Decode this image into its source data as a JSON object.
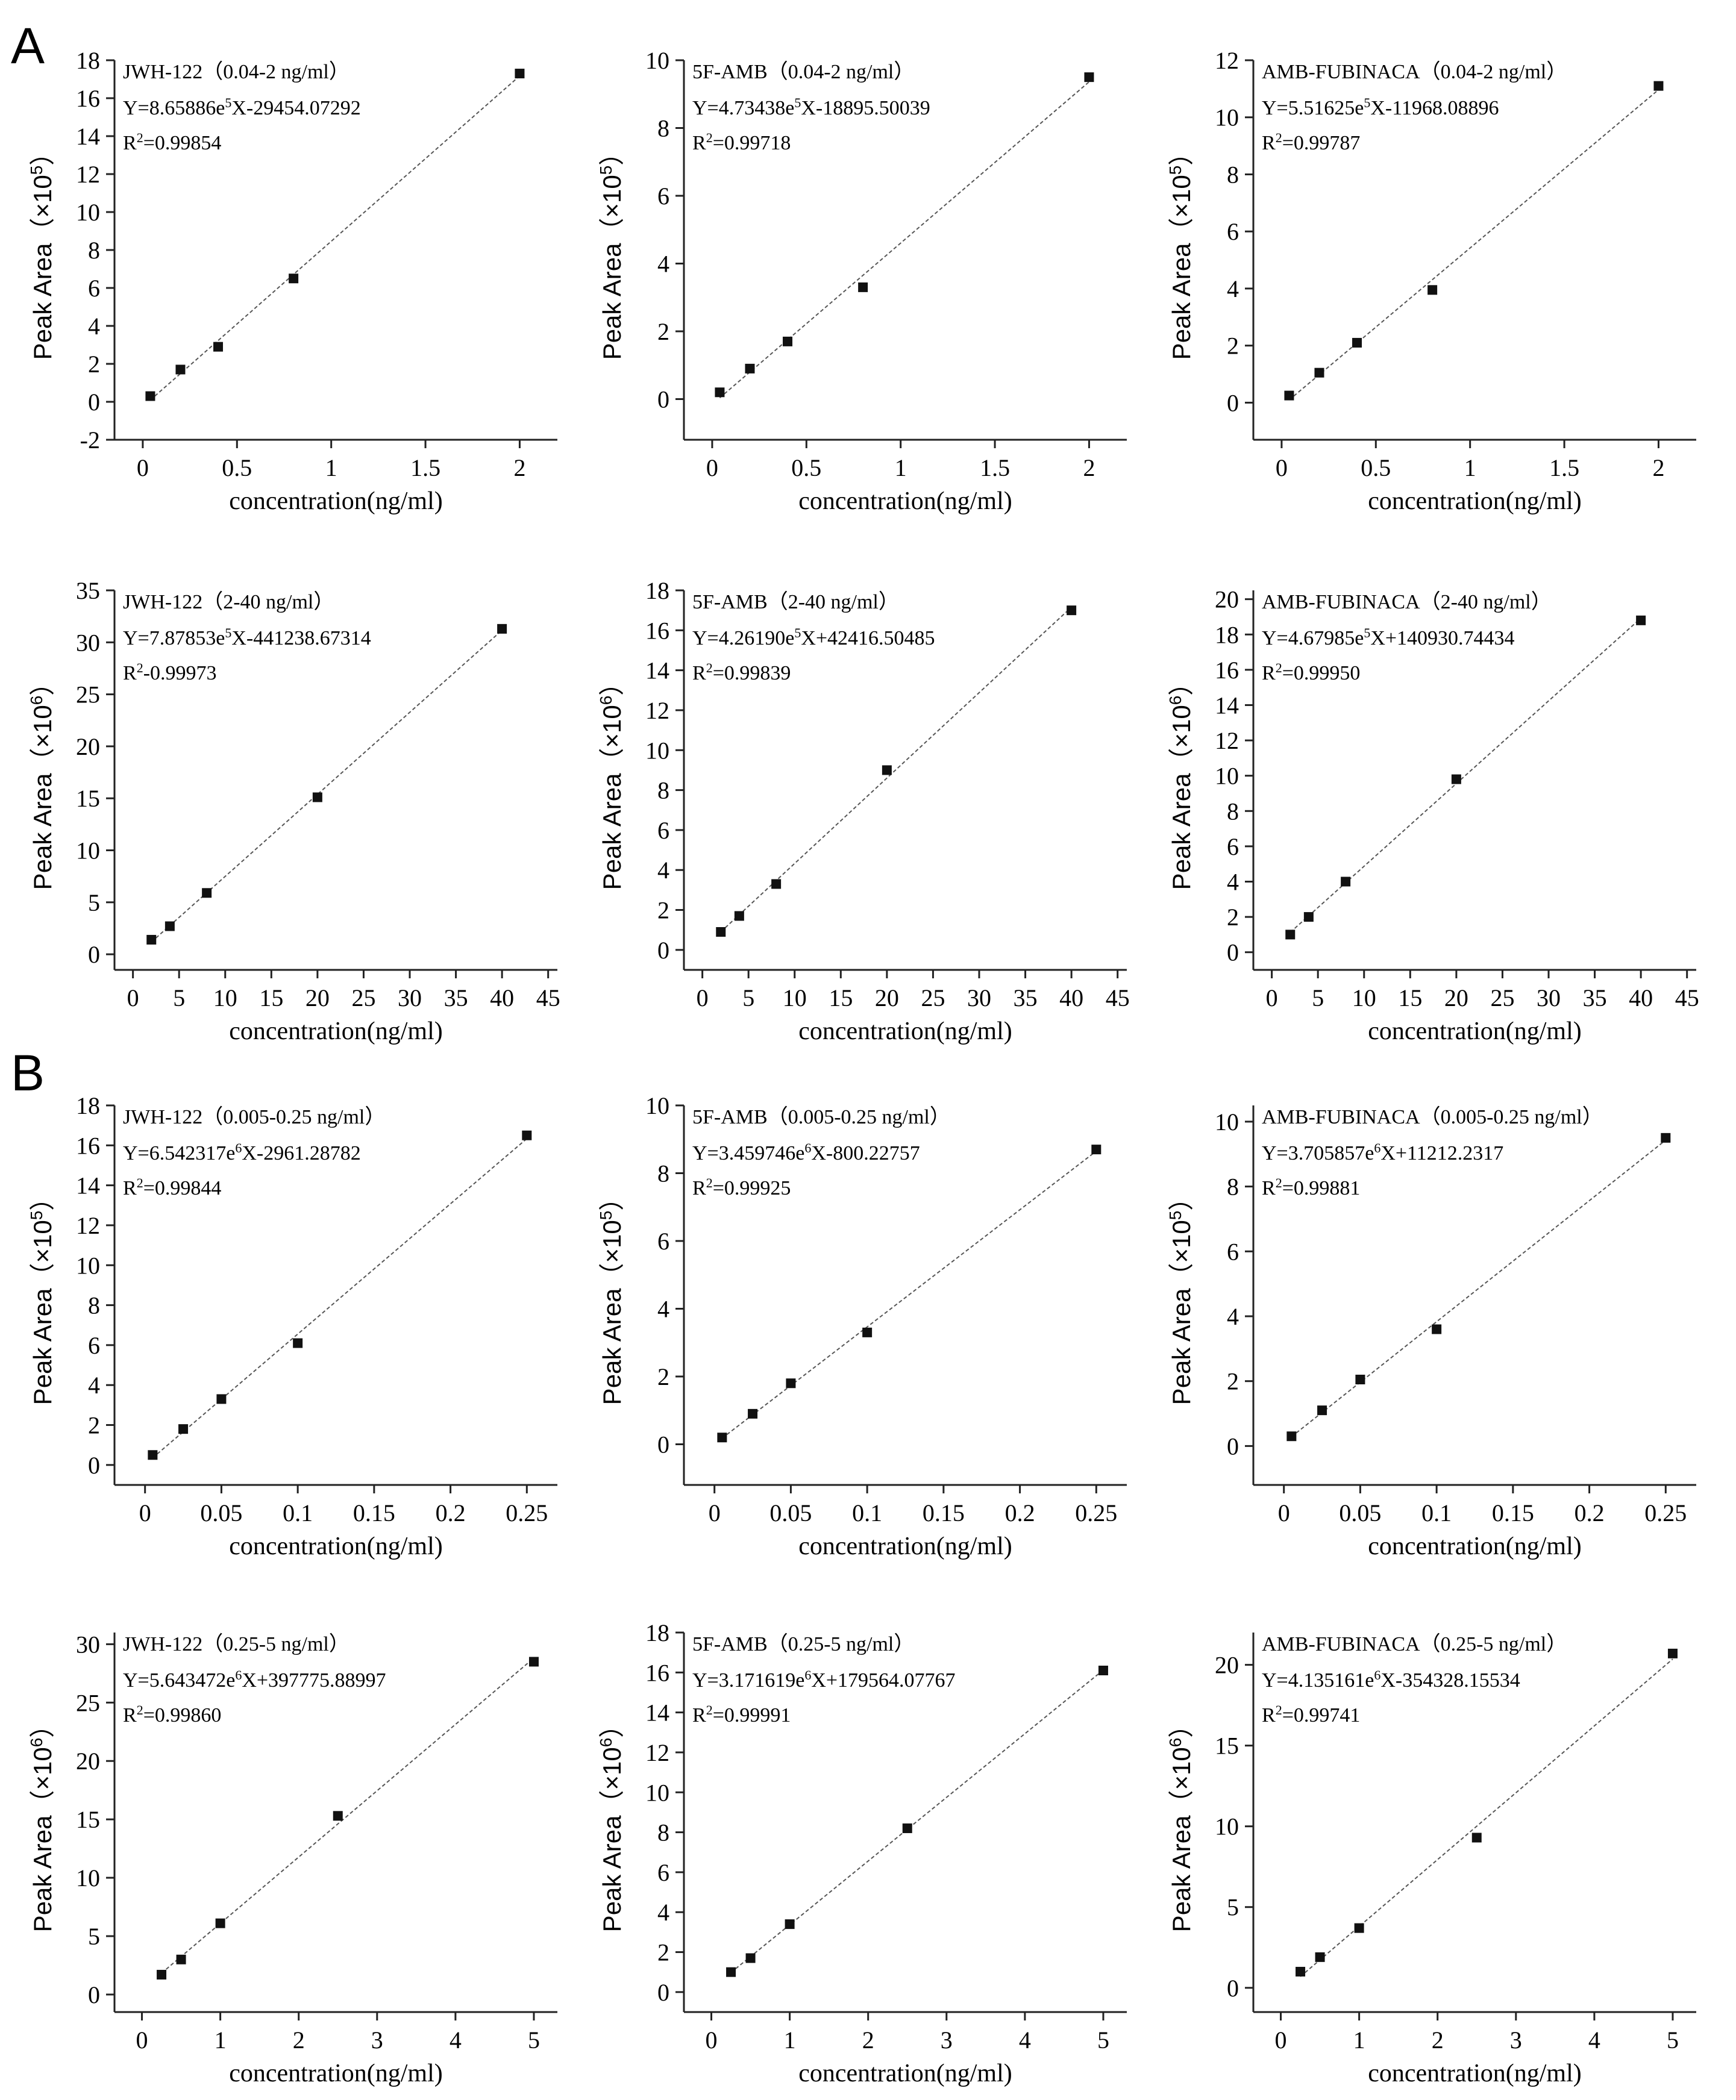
{
  "panel_labels": [
    "A",
    "B"
  ],
  "chart_data": [
    {
      "type": "scatter",
      "panel": "A",
      "title": "JWH-122（0.04-2 ng/ml）",
      "equation_prefix": "Y=8.65886e",
      "equation_exp": "5",
      "equation_suffix": "X-29454.07292",
      "r2_prefix": "R",
      "r2_exp": "2",
      "r2_suffix": "=0.99854",
      "xlabel": "concentration(ng/ml)",
      "ylabel": "Peak Area（×10",
      "ylabel_exp": "5",
      "ylabel_end": "）",
      "xlim": [
        -0.15,
        2.2
      ],
      "ylim": [
        -2,
        18
      ],
      "xticks": [
        0,
        0.5,
        1,
        1.5,
        2
      ],
      "xtick_labels": [
        "0",
        "0.5",
        "1",
        "1.5",
        "2"
      ],
      "yticks": [
        -2,
        0,
        2,
        4,
        6,
        8,
        10,
        12,
        14,
        16,
        18
      ],
      "ytick_labels": [
        "-2",
        "0",
        "2",
        "4",
        "6",
        "8",
        "10",
        "12",
        "14",
        "16",
        "18"
      ],
      "x": [
        0.04,
        0.2,
        0.4,
        0.8,
        2
      ],
      "y": [
        0.3,
        1.7,
        2.9,
        6.5,
        17.3
      ]
    },
    {
      "type": "scatter",
      "panel": "A",
      "title": "5F-AMB（0.04-2 ng/ml）",
      "equation_prefix": "Y=4.73438e",
      "equation_exp": "5",
      "equation_suffix": "X-18895.50039",
      "r2_prefix": "R",
      "r2_exp": "2",
      "r2_suffix": "=0.99718",
      "xlabel": "concentration(ng/ml)",
      "ylabel": "Peak Area（×10",
      "ylabel_exp": "5",
      "ylabel_end": "）",
      "xlim": [
        -0.15,
        2.2
      ],
      "ylim": [
        -1.2,
        10
      ],
      "xticks": [
        0,
        0.5,
        1,
        1.5,
        2
      ],
      "xtick_labels": [
        "0",
        "0.5",
        "1",
        "1.5",
        "2"
      ],
      "yticks": [
        0,
        2,
        4,
        6,
        8,
        10
      ],
      "ytick_labels": [
        "0",
        "2",
        "4",
        "6",
        "8",
        "10"
      ],
      "x": [
        0.04,
        0.2,
        0.4,
        0.8,
        2
      ],
      "y": [
        0.2,
        0.9,
        1.7,
        3.3,
        9.5
      ]
    },
    {
      "type": "scatter",
      "panel": "A",
      "title": "AMB-FUBINACA（0.04-2 ng/ml）",
      "equation_prefix": "Y=5.51625e",
      "equation_exp": "5",
      "equation_suffix": "X-11968.08896",
      "r2_prefix": "R",
      "r2_exp": "2",
      "r2_suffix": "=0.99787",
      "xlabel": "concentration(ng/ml)",
      "ylabel": "Peak Area（×10",
      "ylabel_exp": "5",
      "ylabel_end": "）",
      "xlim": [
        -0.15,
        2.2
      ],
      "ylim": [
        -1.3,
        12
      ],
      "xticks": [
        0,
        0.5,
        1,
        1.5,
        2
      ],
      "xtick_labels": [
        "0",
        "0.5",
        "1",
        "1.5",
        "2"
      ],
      "yticks": [
        0,
        2,
        4,
        6,
        8,
        10,
        12
      ],
      "ytick_labels": [
        "0",
        "2",
        "4",
        "6",
        "8",
        "10",
        "12"
      ],
      "x": [
        0.04,
        0.2,
        0.4,
        0.8,
        2
      ],
      "y": [
        0.25,
        1.05,
        2.1,
        3.95,
        11.1
      ]
    },
    {
      "type": "scatter",
      "panel": "A",
      "title": "JWH-122（2-40 ng/ml）",
      "equation_prefix": "Y=7.87853e",
      "equation_exp": "5",
      "equation_suffix": "X-441238.67314",
      "r2_prefix": "R",
      "r2_exp": "2",
      "r2_suffix": "-0.99973",
      "xlabel": "concentration(ng/ml)",
      "ylabel": "Peak Area（×10",
      "ylabel_exp": "6",
      "ylabel_end": "）",
      "xlim": [
        -2,
        46
      ],
      "ylim": [
        -1.5,
        35
      ],
      "xticks": [
        0,
        5,
        10,
        15,
        20,
        25,
        30,
        35,
        40,
        45
      ],
      "xtick_labels": [
        "0",
        "5",
        "10",
        "15",
        "20",
        "25",
        "30",
        "35",
        "40",
        "45"
      ],
      "yticks": [
        0,
        5,
        10,
        15,
        20,
        25,
        30,
        35
      ],
      "ytick_labels": [
        "0",
        "5",
        "10",
        "15",
        "20",
        "25",
        "30",
        "35"
      ],
      "x": [
        2,
        4,
        8,
        20,
        40
      ],
      "y": [
        1.4,
        2.7,
        5.9,
        15.1,
        31.3
      ]
    },
    {
      "type": "scatter",
      "panel": "A",
      "title": "5F-AMB（2-40 ng/ml）",
      "equation_prefix": "Y=4.26190e",
      "equation_exp": "5",
      "equation_suffix": "X+42416.50485",
      "r2_prefix": "R",
      "r2_exp": "2",
      "r2_suffix": "=0.99839",
      "xlabel": "concentration(ng/ml)",
      "ylabel": "Peak Area（×10",
      "ylabel_exp": "6",
      "ylabel_end": "）",
      "xlim": [
        -2,
        46
      ],
      "ylim": [
        -1,
        18
      ],
      "xticks": [
        0,
        5,
        10,
        15,
        20,
        25,
        30,
        35,
        40,
        45
      ],
      "xtick_labels": [
        "0",
        "5",
        "10",
        "15",
        "20",
        "25",
        "30",
        "35",
        "40",
        "45"
      ],
      "yticks": [
        0,
        2,
        4,
        6,
        8,
        10,
        12,
        14,
        16,
        18
      ],
      "ytick_labels": [
        "0",
        "2",
        "4",
        "6",
        "8",
        "10",
        "12",
        "14",
        "16",
        "18"
      ],
      "x": [
        2,
        4,
        8,
        20,
        40
      ],
      "y": [
        0.9,
        1.7,
        3.3,
        9.0,
        17.0
      ]
    },
    {
      "type": "scatter",
      "panel": "A",
      "title": "AMB-FUBINACA（2-40 ng/ml）",
      "equation_prefix": "Y=4.67985e",
      "equation_exp": "5",
      "equation_suffix": "X+140930.74434",
      "r2_prefix": "R",
      "r2_exp": "2",
      "r2_suffix": "=0.99950",
      "xlabel": "concentration(ng/ml)",
      "ylabel": "Peak Area（×10",
      "ylabel_exp": "6",
      "ylabel_end": "）",
      "xlim": [
        -2,
        46
      ],
      "ylim": [
        -1,
        20.5
      ],
      "xticks": [
        0,
        5,
        10,
        15,
        20,
        25,
        30,
        35,
        40,
        45
      ],
      "xtick_labels": [
        "0",
        "5",
        "10",
        "15",
        "20",
        "25",
        "30",
        "35",
        "40",
        "45"
      ],
      "yticks": [
        0,
        2,
        4,
        6,
        8,
        10,
        12,
        14,
        16,
        18,
        20
      ],
      "ytick_labels": [
        "0",
        "2",
        "4",
        "6",
        "8",
        "10",
        "12",
        "14",
        "16",
        "18",
        "20"
      ],
      "x": [
        2,
        4,
        8,
        20,
        40
      ],
      "y": [
        1.0,
        2.0,
        4.0,
        9.8,
        18.8
      ]
    },
    {
      "type": "scatter",
      "panel": "B",
      "title": "JWH-122（0.005-0.25 ng/ml）",
      "equation_prefix": "Y=6.542317e",
      "equation_exp": "6",
      "equation_suffix": "X-2961.28782",
      "r2_prefix": "R",
      "r2_exp": "2",
      "r2_suffix": "=0.99844",
      "xlabel": "concentration(ng/ml)",
      "ylabel": "Peak Area（×10",
      "ylabel_exp": "5",
      "ylabel_end": "）",
      "xlim": [
        -0.02,
        0.27
      ],
      "ylim": [
        -1,
        18
      ],
      "xticks": [
        0,
        0.05,
        0.1,
        0.15,
        0.2,
        0.25
      ],
      "xtick_labels": [
        "0",
        "0.05",
        "0.1",
        "0.15",
        "0.2",
        "0.25"
      ],
      "yticks": [
        0,
        2,
        4,
        6,
        8,
        10,
        12,
        14,
        16,
        18
      ],
      "ytick_labels": [
        "0",
        "2",
        "4",
        "6",
        "8",
        "10",
        "12",
        "14",
        "16",
        "18"
      ],
      "x": [
        0.005,
        0.025,
        0.05,
        0.1,
        0.25
      ],
      "y": [
        0.5,
        1.8,
        3.3,
        6.1,
        16.5
      ]
    },
    {
      "type": "scatter",
      "panel": "B",
      "title": "5F-AMB（0.005-0.25 ng/ml）",
      "equation_prefix": "Y=3.459746e",
      "equation_exp": "6",
      "equation_suffix": "X-800.22757",
      "r2_prefix": "R",
      "r2_exp": "2",
      "r2_suffix": "=0.99925",
      "xlabel": "concentration(ng/ml)",
      "ylabel": "Peak Area（×10",
      "ylabel_exp": "5",
      "ylabel_end": "）",
      "xlim": [
        -0.02,
        0.27
      ],
      "ylim": [
        -1.2,
        10
      ],
      "xticks": [
        0,
        0.05,
        0.1,
        0.15,
        0.2,
        0.25
      ],
      "xtick_labels": [
        "0",
        "0.05",
        "0.1",
        "0.15",
        "0.2",
        "0.25"
      ],
      "yticks": [
        0,
        2,
        4,
        6,
        8,
        10
      ],
      "ytick_labels": [
        "0",
        "2",
        "4",
        "6",
        "8",
        "10"
      ],
      "x": [
        0.005,
        0.025,
        0.05,
        0.1,
        0.25
      ],
      "y": [
        0.2,
        0.9,
        1.8,
        3.3,
        8.7
      ]
    },
    {
      "type": "scatter",
      "panel": "B",
      "title": "AMB-FUBINACA（0.005-0.25 ng/ml）",
      "equation_prefix": "Y=3.705857e",
      "equation_exp": "6",
      "equation_suffix": "X+11212.2317",
      "r2_prefix": "R",
      "r2_exp": "2",
      "r2_suffix": "=0.99881",
      "xlabel": "concentration(ng/ml)",
      "ylabel": "Peak Area（×10",
      "ylabel_exp": "5",
      "ylabel_end": "）",
      "xlim": [
        -0.02,
        0.27
      ],
      "ylim": [
        -1.2,
        10.5
      ],
      "xticks": [
        0,
        0.05,
        0.1,
        0.15,
        0.2,
        0.25
      ],
      "xtick_labels": [
        "0",
        "0.05",
        "0.1",
        "0.15",
        "0.2",
        "0.25"
      ],
      "yticks": [
        0,
        2,
        4,
        6,
        8,
        10
      ],
      "ytick_labels": [
        "0",
        "2",
        "4",
        "6",
        "8",
        "10"
      ],
      "x": [
        0.005,
        0.025,
        0.05,
        0.1,
        0.25
      ],
      "y": [
        0.3,
        1.1,
        2.05,
        3.6,
        9.5
      ]
    },
    {
      "type": "scatter",
      "panel": "B",
      "title": "JWH-122（0.25-5 ng/ml）",
      "equation_prefix": "Y=5.643472e",
      "equation_exp": "6",
      "equation_suffix": "X+397775.88997",
      "r2_prefix": "R",
      "r2_exp": "2",
      "r2_suffix": "=0.99860",
      "xlabel": "concentration(ng/ml)",
      "ylabel": "Peak Area（×10",
      "ylabel_exp": "6",
      "ylabel_end": "）",
      "xlim": [
        -0.35,
        5.3
      ],
      "ylim": [
        -1.5,
        31
      ],
      "xticks": [
        0,
        1,
        2,
        3,
        4,
        5
      ],
      "xtick_labels": [
        "0",
        "1",
        "2",
        "3",
        "4",
        "5"
      ],
      "yticks": [
        0,
        5,
        10,
        15,
        20,
        25,
        30
      ],
      "ytick_labels": [
        "0",
        "5",
        "10",
        "15",
        "20",
        "25",
        "30"
      ],
      "x": [
        0.25,
        0.5,
        1,
        2.5,
        5
      ],
      "y": [
        1.7,
        3.0,
        6.1,
        15.3,
        28.5
      ]
    },
    {
      "type": "scatter",
      "panel": "B",
      "title": "5F-AMB（0.25-5 ng/ml）",
      "equation_prefix": "Y=3.171619e",
      "equation_exp": "6",
      "equation_suffix": "X+179564.07767",
      "r2_prefix": "R",
      "r2_exp": "2",
      "r2_suffix": "=0.99991",
      "xlabel": "concentration(ng/ml)",
      "ylabel": "Peak Area（×10",
      "ylabel_exp": "6",
      "ylabel_end": "）",
      "xlim": [
        -0.35,
        5.3
      ],
      "ylim": [
        -1,
        18
      ],
      "xticks": [
        0,
        1,
        2,
        3,
        4,
        5
      ],
      "xtick_labels": [
        "0",
        "1",
        "2",
        "3",
        "4",
        "5"
      ],
      "yticks": [
        0,
        2,
        4,
        6,
        8,
        10,
        12,
        14,
        16,
        18
      ],
      "ytick_labels": [
        "0",
        "2",
        "4",
        "6",
        "8",
        "10",
        "12",
        "14",
        "16",
        "18"
      ],
      "x": [
        0.25,
        0.5,
        1,
        2.5,
        5
      ],
      "y": [
        1.0,
        1.7,
        3.4,
        8.2,
        16.1
      ]
    },
    {
      "type": "scatter",
      "panel": "B",
      "title": "AMB-FUBINACA（0.25-5 ng/ml）",
      "equation_prefix": "Y=4.135161e",
      "equation_exp": "6",
      "equation_suffix": "X-354328.15534",
      "r2_prefix": "R",
      "r2_exp": "2",
      "r2_suffix": "=0.99741",
      "xlabel": "concentration(ng/ml)",
      "ylabel": "Peak Area（×10",
      "ylabel_exp": "6",
      "ylabel_end": "）",
      "xlim": [
        -0.35,
        5.3
      ],
      "ylim": [
        -1.5,
        22
      ],
      "xticks": [
        0,
        1,
        2,
        3,
        4,
        5
      ],
      "xtick_labels": [
        "0",
        "1",
        "2",
        "3",
        "4",
        "5"
      ],
      "yticks": [
        0,
        5,
        10,
        15,
        20
      ],
      "ytick_labels": [
        "0",
        "5",
        "10",
        "15",
        "20"
      ],
      "x": [
        0.25,
        0.5,
        1,
        2.5,
        5
      ],
      "y": [
        1.0,
        1.9,
        3.7,
        9.3,
        20.7
      ]
    }
  ]
}
